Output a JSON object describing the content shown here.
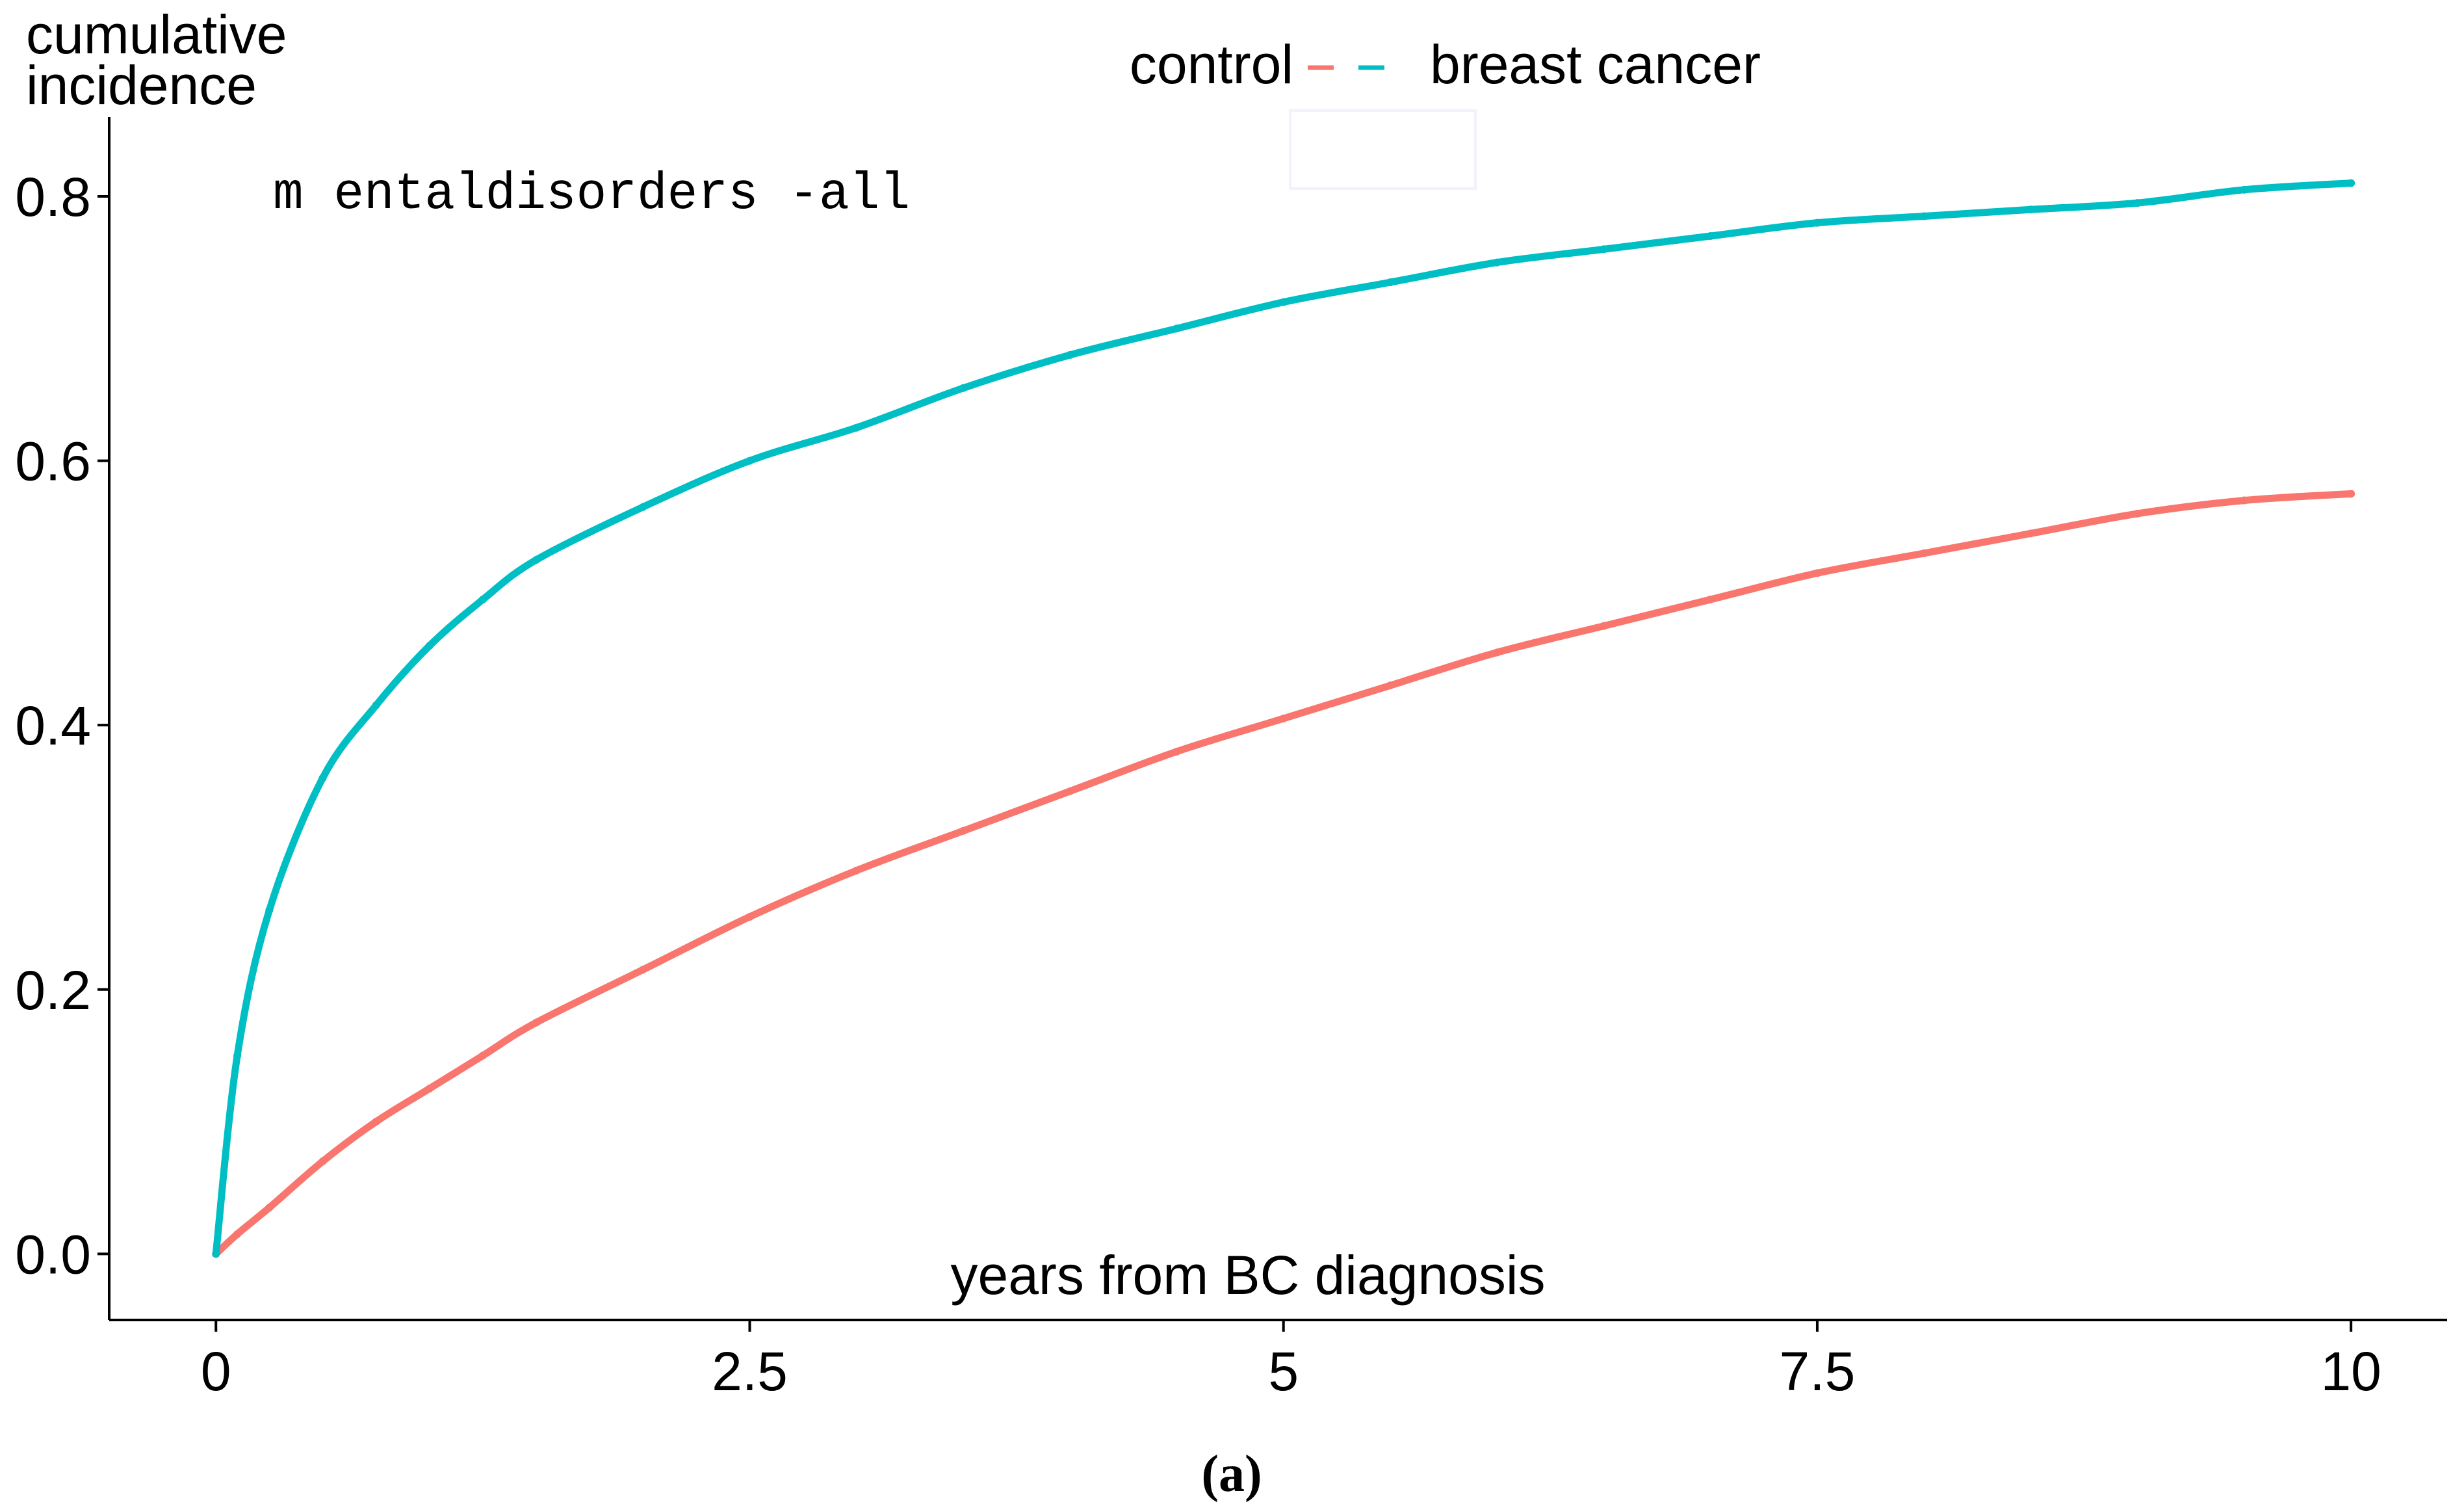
{
  "chart_data": {
    "type": "line",
    "title": "m entaldisorders -all",
    "xlabel": "years from BC diagnosis",
    "ylabel": "cumulative incidence",
    "ylabel_lines": [
      "cumulative",
      "incidence"
    ],
    "xlim": [
      -0.5,
      10.45
    ],
    "ylim": [
      -0.05,
      0.86
    ],
    "xticks": [
      0,
      2.5,
      5,
      7.5,
      10
    ],
    "xtick_labels": [
      "0",
      "2.5",
      "5",
      "7.5",
      "10"
    ],
    "yticks": [
      0.0,
      0.2,
      0.4,
      0.6,
      0.8
    ],
    "ytick_labels": [
      "0.0",
      "0.2",
      "0.4",
      "0.6",
      "0.8"
    ],
    "grid": false,
    "legend_position": "top",
    "caption": "(a)",
    "x": [
      0,
      0.1,
      0.25,
      0.5,
      0.75,
      1.0,
      1.25,
      1.5,
      2.0,
      2.5,
      3.0,
      3.5,
      4.0,
      4.5,
      5.0,
      5.5,
      6.0,
      6.5,
      7.0,
      7.5,
      8.0,
      8.5,
      9.0,
      9.5,
      10.0
    ],
    "series": [
      {
        "name": "control",
        "color": "#F8766D",
        "values": [
          0.0,
          0.015,
          0.035,
          0.07,
          0.1,
          0.125,
          0.15,
          0.175,
          0.215,
          0.255,
          0.29,
          0.32,
          0.35,
          0.38,
          0.405,
          0.43,
          0.455,
          0.475,
          0.495,
          0.515,
          0.53,
          0.545,
          0.56,
          0.57,
          0.575
        ]
      },
      {
        "name": "breast cancer",
        "color": "#00BFC4",
        "values": [
          0.0,
          0.15,
          0.26,
          0.36,
          0.415,
          0.46,
          0.495,
          0.525,
          0.565,
          0.6,
          0.625,
          0.655,
          0.68,
          0.7,
          0.72,
          0.735,
          0.75,
          0.76,
          0.77,
          0.78,
          0.785,
          0.79,
          0.795,
          0.805,
          0.81
        ]
      }
    ]
  }
}
